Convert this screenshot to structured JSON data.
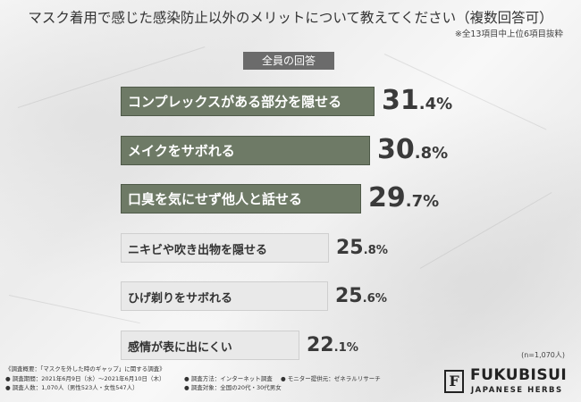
{
  "title": "マスク着用で感じた感染防止以外のメリットについて教えてください（複数回答可）",
  "subnote": "※全13項目中上位6項目抜粋",
  "scope_label": "全員の回答",
  "n_note": "(n=1,070人)",
  "survey": {
    "heading": "《調査概要：「マスクを外した時のギャップ」に関する調査》",
    "period": "● 調査期間：2021年6月9日（水）～2021年6月10日（木）",
    "method": "● 調査方法：インターネット調査",
    "provider": "● モニター提供元：ゼネラルリサーチ",
    "count": "● 調査人数：1,070人（男性523人・女性547人）",
    "target": "● 調査対象：全国の20代・30代男女"
  },
  "brand": {
    "name": "FUKUBISUI",
    "sub": "JAPANESE HERBS",
    "mark": "F"
  },
  "colors": {
    "top": "#6e7a66",
    "top_border": "#4f5a49",
    "other": "#e9e9e9",
    "other_border": "#cfcfcf"
  },
  "chart_data": {
    "type": "bar",
    "orientation": "horizontal",
    "categories": [
      "コンプレックスがある部分を隠せる",
      "メイクをサボれる",
      "口臭を気にせず他人と話せる",
      "ニキビや吹き出物を隠せる",
      "ひげ剃りをサボれる",
      "感情が表に出にくい"
    ],
    "values": [
      31.4,
      30.8,
      29.7,
      25.8,
      25.6,
      22.1
    ],
    "value_labels": [
      {
        "int": "31",
        "dec": ".4%"
      },
      {
        "int": "30",
        "dec": ".8%"
      },
      {
        "int": "29",
        "dec": ".7%"
      },
      {
        "int": "25",
        "dec": ".8%"
      },
      {
        "int": "25",
        "dec": ".6%"
      },
      {
        "int": "22",
        "dec": ".1%"
      }
    ],
    "highlight_top": 3,
    "xlim": [
      0,
      31.4
    ]
  }
}
